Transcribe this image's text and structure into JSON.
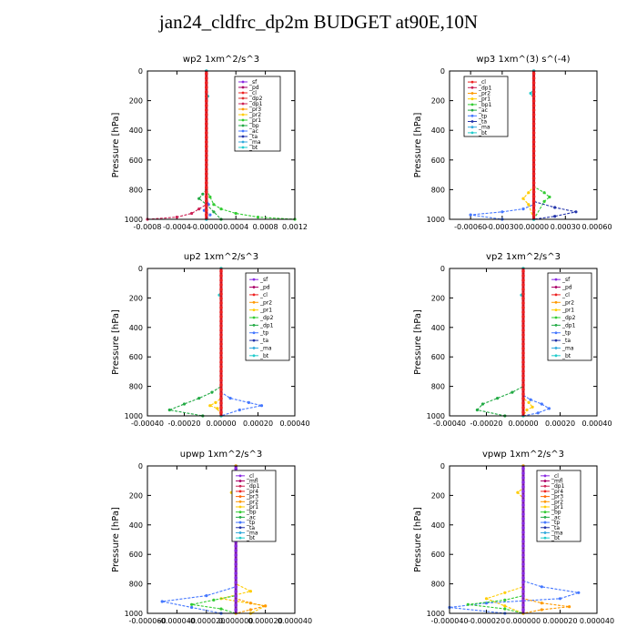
{
  "figure_title": "jan24_cldfrc_dp2m  BUDGET at90E,10N",
  "chart_data": [
    {
      "type": "line",
      "title": "wp2   1xm^2/s^3",
      "ylabel": "Pressure  [hPa]",
      "xlim": [
        -0.0008,
        0.0012
      ],
      "ylim": [
        1000,
        0
      ],
      "xticks": [
        -0.0008,
        -0.0004,
        0.0,
        0.0004,
        0.0008,
        0.0012
      ],
      "xtick_labels": [
        "-0.0008",
        "-0.0004",
        "-0.00000",
        "0.0004",
        "0.0008",
        "0.0012"
      ],
      "yticks": [
        0,
        200,
        400,
        600,
        800,
        1000
      ],
      "legend": [
        "_sf",
        "_pd",
        "_cl",
        "_dp2",
        "_dp1",
        "_pr3",
        "_pr2",
        "_pr1",
        "_bp",
        "_ac",
        "_ta",
        "_ma",
        "_bt"
      ],
      "series_colors": [
        "#8a2be2",
        "#aa0066",
        "#ee2222",
        "#dd3333",
        "#cc2255",
        "#ff9900",
        "#ffcc00",
        "#33cc33",
        "#22aa44",
        "#4477ff",
        "#2233aa",
        "#33aadd",
        "#22cccc"
      ],
      "series": [
        {
          "name": "_pr1",
          "x": [
            0,
            0,
            5e-05,
            0.0001,
            0.0002,
            0.0004,
            0.0007,
            0.0012
          ],
          "y": [
            0,
            800,
            850,
            900,
            930,
            960,
            985,
            1000
          ]
        },
        {
          "name": "_bp",
          "x": [
            0,
            0,
            -5e-05,
            -0.0001,
            0.0,
            0.0001,
            0.0002
          ],
          "y": [
            0,
            800,
            830,
            860,
            900,
            950,
            1000
          ]
        },
        {
          "name": "_dp1",
          "x": [
            0,
            0,
            0,
            -0.0001,
            -0.0002,
            -0.0004,
            -0.0008
          ],
          "y": [
            0,
            850,
            900,
            930,
            960,
            985,
            1000
          ]
        },
        {
          "name": "_ac",
          "x": [
            0,
            0,
            3e-05,
            -3e-05,
            5e-05,
            0
          ],
          "y": [
            0,
            850,
            900,
            940,
            970,
            1000
          ]
        },
        {
          "name": "_bt",
          "x": [
            0,
            0,
            2e-05,
            0.0,
            0.0
          ],
          "y": [
            0,
            150,
            170,
            190,
            1000
          ]
        }
      ]
    },
    {
      "type": "line",
      "title": "wp3   1xm^(3) s^(-4)",
      "ylabel": "Pressure  [hPa]",
      "xlim": [
        -0.0008,
        0.0006
      ],
      "ylim": [
        1000,
        0
      ],
      "xticks": [
        -0.0006,
        -0.0003,
        0.0,
        0.0003,
        0.0006
      ],
      "xtick_labels": [
        "-0.00060",
        "-0.00030",
        "0.00000",
        "0.00030",
        "0.00060"
      ],
      "yticks": [
        0,
        200,
        400,
        600,
        800,
        1000
      ],
      "legend": [
        "_cl",
        "_dp1",
        "_pr2",
        "_pr1",
        "_bp1",
        "_ac",
        "_tp",
        "_ta",
        "_ma",
        "_bt"
      ],
      "series_colors": [
        "#ee2222",
        "#cc2255",
        "#ff9900",
        "#ffcc00",
        "#33cc33",
        "#22aa44",
        "#4477ff",
        "#2233aa",
        "#33aadd",
        "#22cccc"
      ],
      "series": [
        {
          "name": "_pr1",
          "x": [
            0,
            0,
            -5e-05,
            -0.0001,
            -5e-05,
            0
          ],
          "y": [
            0,
            780,
            820,
            860,
            900,
            1000
          ]
        },
        {
          "name": "_bp1",
          "x": [
            0,
            0,
            0.0001,
            0.00015,
            0.0001,
            0.0
          ],
          "y": [
            0,
            780,
            820,
            850,
            880,
            1000
          ]
        },
        {
          "name": "_tp",
          "x": [
            0,
            0,
            -0.0001,
            -0.0003,
            -0.0006,
            -0.0003
          ],
          "y": [
            0,
            900,
            930,
            950,
            970,
            1000
          ]
        },
        {
          "name": "_ta",
          "x": [
            0,
            0,
            0.0002,
            0.0004,
            0.0002,
            0.0
          ],
          "y": [
            0,
            880,
            920,
            950,
            980,
            1000
          ]
        },
        {
          "name": "_bt",
          "x": [
            0,
            0,
            -3e-05,
            0.0,
            0.0
          ],
          "y": [
            0,
            120,
            150,
            190,
            1000
          ]
        }
      ]
    },
    {
      "type": "line",
      "title": "up2   1xm^2/s^3",
      "ylabel": "Pressure  [hPa]",
      "xlim": [
        -0.0004,
        0.0004
      ],
      "ylim": [
        1000,
        0
      ],
      "xticks": [
        -0.0004,
        -0.0002,
        0.0,
        0.0002,
        0.0004
      ],
      "xtick_labels": [
        "-0.00040",
        "-0.00020",
        "0.00000",
        "0.00020",
        "0.00040"
      ],
      "yticks": [
        0,
        200,
        400,
        600,
        800,
        1000
      ],
      "legend": [
        "_sf",
        "_pd",
        "_cl",
        "_pr2",
        "_pr1",
        "_dp2",
        "_dp1",
        "_tp",
        "_ta",
        "_ma",
        "_bt"
      ],
      "series_colors": [
        "#8a2be2",
        "#aa0066",
        "#ee2222",
        "#ff9900",
        "#ffcc00",
        "#33cc33",
        "#22aa44",
        "#4477ff",
        "#2233aa",
        "#33aadd",
        "#22cccc"
      ],
      "series": [
        {
          "name": "_dp1",
          "x": [
            0,
            0,
            -5e-05,
            -0.00012,
            -0.0002,
            -0.00028,
            -0.0001
          ],
          "y": [
            0,
            800,
            840,
            880,
            920,
            960,
            1000
          ]
        },
        {
          "name": "_tp",
          "x": [
            0,
            0,
            5e-05,
            0.00015,
            0.00022,
            0.0001,
            0.0
          ],
          "y": [
            0,
            840,
            880,
            910,
            930,
            960,
            1000
          ]
        },
        {
          "name": "_pr1",
          "x": [
            0,
            0,
            -3e-05,
            -6e-05,
            -2e-05,
            0
          ],
          "y": [
            0,
            880,
            910,
            930,
            950,
            1000
          ]
        },
        {
          "name": "_bt",
          "x": [
            0,
            0,
            -1e-05,
            0.0,
            0.0
          ],
          "y": [
            0,
            150,
            180,
            210,
            1000
          ]
        }
      ]
    },
    {
      "type": "line",
      "title": "vp2   1xm^2/s^3",
      "ylabel": "Pressure  [hPa]",
      "xlim": [
        -0.0004,
        0.0004
      ],
      "ylim": [
        1000,
        0
      ],
      "xticks": [
        -0.0004,
        -0.0002,
        0.0,
        0.0002,
        0.0004
      ],
      "xtick_labels": [
        "-0.00040",
        "-0.00020",
        "0.00000",
        "0.00020",
        "0.00040"
      ],
      "yticks": [
        0,
        200,
        400,
        600,
        800,
        1000
      ],
      "legend": [
        "_sf",
        "_pd",
        "_cl",
        "_pr2",
        "_pr1",
        "_dp2",
        "_dp1",
        "_tp",
        "_ta",
        "_ma",
        "_bt"
      ],
      "series_colors": [
        "#8a2be2",
        "#aa0066",
        "#ee2222",
        "#ff9900",
        "#ffcc00",
        "#33cc33",
        "#22aa44",
        "#4477ff",
        "#2233aa",
        "#33aadd",
        "#22cccc"
      ],
      "series": [
        {
          "name": "_dp1",
          "x": [
            0,
            0,
            -6e-05,
            -0.00014,
            -0.00022,
            -0.00025,
            -0.0001
          ],
          "y": [
            0,
            800,
            840,
            880,
            920,
            960,
            1000
          ]
        },
        {
          "name": "_tp",
          "x": [
            0,
            0,
            4e-05,
            0.0001,
            0.00014,
            8e-05,
            0.0
          ],
          "y": [
            0,
            860,
            890,
            920,
            950,
            980,
            1000
          ]
        },
        {
          "name": "_pr1",
          "x": [
            0,
            0,
            3e-05,
            5e-05,
            2e-05,
            0
          ],
          "y": [
            0,
            880,
            910,
            940,
            960,
            1000
          ]
        },
        {
          "name": "_bt",
          "x": [
            0,
            0,
            -1e-05,
            0.0,
            0.0
          ],
          "y": [
            0,
            150,
            180,
            210,
            1000
          ]
        }
      ]
    },
    {
      "type": "line",
      "title": "upwp   1xm^2/s^3",
      "ylabel": "Pressure  [hPa]",
      "xlim": [
        -6e-05,
        4e-05
      ],
      "ylim": [
        1000,
        0
      ],
      "xticks": [
        -6e-05,
        -4e-05,
        -2e-05,
        0.0,
        2e-05,
        4e-05
      ],
      "xtick_labels": [
        "-0.000060",
        "-0.000040",
        "-0.000020",
        "0.000000",
        "0.000020",
        "0.000040"
      ],
      "yticks": [
        0,
        200,
        400,
        600,
        800,
        1000
      ],
      "legend": [
        "_cl",
        "_mfl",
        "_dp1",
        "_pr4",
        "_pr3",
        "_pr2",
        "_pr1",
        "_bp",
        "_ac",
        "_tp",
        "_ta",
        "_ma",
        "_bt"
      ],
      "series_colors": [
        "#8a2be2",
        "#aa0066",
        "#cc2255",
        "#ee2222",
        "#ff6600",
        "#ff9900",
        "#ffcc00",
        "#33cc33",
        "#22aa44",
        "#4477ff",
        "#2233aa",
        "#33aadd",
        "#22cccc"
      ],
      "series": [
        {
          "name": "_pr1",
          "x": [
            0,
            0,
            -3e-06,
            -1e-06,
            0,
            0,
            1e-05,
            -1e-05,
            2e-05,
            1e-05
          ],
          "y": [
            0,
            150,
            180,
            200,
            220,
            800,
            850,
            900,
            950,
            1000
          ]
        },
        {
          "name": "_tp",
          "x": [
            0,
            0,
            5e-06,
            0,
            0,
            -2e-05,
            -5e-05,
            -3e-05,
            -1e-05
          ],
          "y": [
            0,
            180,
            210,
            240,
            820,
            880,
            920,
            960,
            1000
          ]
        },
        {
          "name": "_bp",
          "x": [
            0,
            0,
            -1.5e-05,
            -3e-05,
            -1e-05,
            0.0
          ],
          "y": [
            0,
            880,
            910,
            940,
            970,
            1000
          ]
        },
        {
          "name": "_pr2",
          "x": [
            0,
            0,
            1e-05,
            2e-05,
            1e-05,
            0.0
          ],
          "y": [
            0,
            900,
            930,
            950,
            975,
            1000
          ]
        }
      ]
    },
    {
      "type": "line",
      "title": "vpwp   1xm^2/s^3",
      "ylabel": "Pressure  [hPa]",
      "xlim": [
        -4e-05,
        4e-05
      ],
      "ylim": [
        1000,
        0
      ],
      "xticks": [
        -4e-05,
        -2e-05,
        0.0,
        2e-05,
        4e-05
      ],
      "xtick_labels": [
        "-0.000040",
        "-0.000020",
        "0.000000",
        "0.000020",
        "0.000040"
      ],
      "yticks": [
        0,
        200,
        400,
        600,
        800,
        1000
      ],
      "legend": [
        "_cl",
        "_mfl",
        "_dp1",
        "_pr4",
        "_pr3",
        "_pr2",
        "_pr1",
        "_bp",
        "_ac",
        "_tp",
        "_ta",
        "_ma",
        "_bt"
      ],
      "series_colors": [
        "#8a2be2",
        "#aa0066",
        "#cc2255",
        "#ee2222",
        "#ff6600",
        "#ff9900",
        "#ffcc00",
        "#33cc33",
        "#22aa44",
        "#4477ff",
        "#2233aa",
        "#33aadd",
        "#22cccc"
      ],
      "series": [
        {
          "name": "_tp",
          "x": [
            0,
            0,
            1e-05,
            3e-05,
            2e-05,
            -2e-05,
            -4e-05,
            -1e-05
          ],
          "y": [
            0,
            780,
            820,
            860,
            900,
            930,
            960,
            1000
          ]
        },
        {
          "name": "_pr1",
          "x": [
            0,
            0,
            -3e-06,
            0,
            0,
            -1e-05,
            -2e-05,
            -1e-05,
            0.0
          ],
          "y": [
            0,
            150,
            180,
            220,
            820,
            860,
            900,
            950,
            1000
          ]
        },
        {
          "name": "_bp",
          "x": [
            0,
            0,
            -1e-05,
            -3e-05,
            -1e-05,
            0.0
          ],
          "y": [
            0,
            880,
            910,
            940,
            970,
            1000
          ]
        },
        {
          "name": "_pr2",
          "x": [
            0,
            0,
            1e-05,
            2.5e-05,
            1e-05,
            0.0
          ],
          "y": [
            0,
            900,
            930,
            955,
            975,
            1000
          ]
        }
      ]
    }
  ]
}
